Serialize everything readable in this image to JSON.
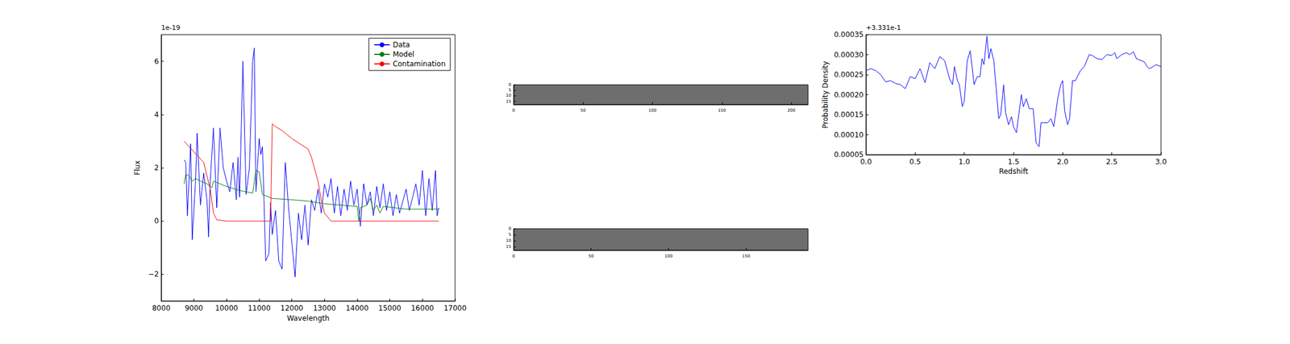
{
  "chart_data": [
    {
      "type": "line",
      "x_label": "Wavelength",
      "y_label": "Flux",
      "annotations": [
        "1e-19"
      ],
      "xlim": [
        8000,
        17000
      ],
      "xticks": [
        8000,
        9000,
        10000,
        11000,
        12000,
        13000,
        14000,
        15000,
        16000,
        17000
      ],
      "ylim": [
        -3,
        7
      ],
      "yticks": [
        {
          "value": -2,
          "label": "−2"
        },
        0,
        2,
        4,
        6
      ],
      "legend": "upper right",
      "series": [
        {
          "name": "Data",
          "color": "#0000ff",
          "x": [
            8700,
            8750,
            8800,
            8900,
            8950,
            9050,
            9100,
            9200,
            9300,
            9400,
            9450,
            9500,
            9600,
            9700,
            9800,
            9900,
            10000,
            10100,
            10200,
            10300,
            10350,
            10400,
            10500,
            10600,
            10700,
            10800,
            10850,
            10900,
            11000,
            11050,
            11100,
            11200,
            11300,
            11350,
            11400,
            11500,
            11600,
            11700,
            11800,
            11900,
            12000,
            12100,
            12200,
            12300,
            12400,
            12500,
            12600,
            12700,
            12800,
            12900,
            13000,
            13100,
            13200,
            13300,
            13400,
            13500,
            13600,
            13700,
            13800,
            13900,
            14000,
            14100,
            14200,
            14300,
            14400,
            14500,
            14600,
            14700,
            14800,
            14900,
            15000,
            15100,
            15200,
            15300,
            15500,
            15600,
            15800,
            15900,
            16000,
            16100,
            16200,
            16300,
            16400,
            16450,
            16500
          ],
          "values": [
            2.3,
            2.2,
            0.2,
            2.9,
            -0.7,
            1.5,
            3.3,
            0.6,
            1.8,
            0.8,
            -0.6,
            1.5,
            3.5,
            0.5,
            3.5,
            2.0,
            1.5,
            1.1,
            2.2,
            0.8,
            2.4,
            0.9,
            6.0,
            1.0,
            2.0,
            6.0,
            6.5,
            1.1,
            3.1,
            2.5,
            2.8,
            -1.5,
            -1.2,
            0.7,
            -0.5,
            0.4,
            -1.5,
            -1.8,
            2.2,
            0.5,
            -0.8,
            -2.1,
            0.3,
            -0.7,
            0.6,
            -0.9,
            0.8,
            0.4,
            1.2,
            0.3,
            1.4,
            0.9,
            1.6,
            0.3,
            1.3,
            0.2,
            1.2,
            0.4,
            1.5,
            0.6,
            1.2,
            -0.2,
            1.4,
            0.6,
            1.1,
            0.2,
            1.3,
            0.5,
            1.4,
            0.4,
            1.1,
            0.2,
            1.0,
            0.3,
            1.2,
            0.4,
            1.4,
            0.6,
            1.9,
            0.2,
            1.6,
            0.4,
            1.9,
            0.2,
            0.5
          ]
        },
        {
          "name": "Model",
          "color": "#008000",
          "x": [
            8700,
            8750,
            8850,
            8950,
            9050,
            9200,
            9400,
            9550,
            9600,
            9800,
            10000,
            10400,
            10800,
            10900,
            11000,
            11100,
            11400,
            12000,
            12500,
            13000,
            13500,
            14000,
            14050,
            14100,
            14300,
            14400,
            14500,
            14600,
            14700,
            14800,
            15500,
            16500
          ],
          "values": [
            1.4,
            1.75,
            1.7,
            1.5,
            1.6,
            1.5,
            1.4,
            1.25,
            1.5,
            1.4,
            1.3,
            1.15,
            1.05,
            1.9,
            1.85,
            1.0,
            0.85,
            0.8,
            0.75,
            0.65,
            0.6,
            0.55,
            0.0,
            0.5,
            0.6,
            0.85,
            0.4,
            0.6,
            0.3,
            0.55,
            0.45,
            0.45
          ]
        },
        {
          "name": "Contamination",
          "color": "#ff0000",
          "x": [
            8700,
            9000,
            9300,
            9500,
            9600,
            9700,
            10000,
            11350,
            11400,
            11500,
            11700,
            12000,
            12500,
            12600,
            12800,
            12900,
            13000,
            13200,
            16500
          ],
          "values": [
            3.0,
            2.6,
            2.2,
            1.2,
            0.3,
            0.05,
            0.0,
            0.0,
            3.65,
            3.55,
            3.4,
            3.1,
            2.7,
            2.4,
            1.5,
            0.8,
            0.3,
            0.0,
            0.0
          ]
        }
      ]
    },
    {
      "type": "image",
      "xlim": [
        0,
        212
      ],
      "xticks": [
        0,
        50,
        100,
        150,
        200
      ],
      "ylim": [
        0,
        18
      ],
      "yticks": [
        0,
        5,
        10,
        15
      ]
    },
    {
      "type": "image",
      "xlim": [
        0,
        190
      ],
      "xticks": [
        0,
        50,
        100,
        150
      ],
      "ylim": [
        0,
        18
      ],
      "yticks": [
        0,
        5,
        10,
        15
      ]
    },
    {
      "type": "line",
      "x_label": "Redshift",
      "y_label": "Probability Density",
      "annotations": [
        "+3.331e-1"
      ],
      "xlim": [
        0,
        3
      ],
      "xticks": [
        {
          "value": 0,
          "label": "0.0"
        },
        0.5,
        {
          "value": 1,
          "label": "1.0"
        },
        1.5,
        {
          "value": 2,
          "label": "2.0"
        },
        2.5,
        {
          "value": 3,
          "label": "3.0"
        }
      ],
      "ylim": [
        5e-05,
        0.00035
      ],
      "yticks": [
        {
          "value": 5e-05,
          "label": "0.00005"
        },
        {
          "value": 0.0001,
          "label": "0.00010"
        },
        {
          "value": 0.00015,
          "label": "0.00015"
        },
        {
          "value": 0.0002,
          "label": "0.00020"
        },
        {
          "value": 0.00025,
          "label": "0.00025"
        },
        {
          "value": 0.0003,
          "label": "0.00030"
        },
        {
          "value": 0.00035,
          "label": "0.00035"
        }
      ],
      "series": [
        {
          "color": "#0000ff",
          "x": [
            0,
            0.05,
            0.1,
            0.15,
            0.2,
            0.25,
            0.3,
            0.35,
            0.4,
            0.45,
            0.5,
            0.55,
            0.6,
            0.65,
            0.7,
            0.75,
            0.8,
            0.85,
            0.88,
            0.9,
            0.93,
            0.95,
            0.98,
            1.0,
            1.03,
            1.06,
            1.1,
            1.13,
            1.16,
            1.18,
            1.2,
            1.23,
            1.25,
            1.27,
            1.3,
            1.35,
            1.37,
            1.4,
            1.42,
            1.45,
            1.48,
            1.5,
            1.53,
            1.58,
            1.6,
            1.63,
            1.66,
            1.7,
            1.73,
            1.76,
            1.78,
            1.8,
            1.85,
            1.88,
            1.91,
            1.95,
            1.98,
            2.0,
            2.02,
            2.05,
            2.07,
            2.1,
            2.13,
            2.18,
            2.22,
            2.27,
            2.3,
            2.35,
            2.4,
            2.45,
            2.5,
            2.53,
            2.55,
            2.6,
            2.65,
            2.68,
            2.72,
            2.75,
            2.8,
            2.83,
            2.86,
            2.88,
            2.92,
            2.95,
            3.0
          ],
          "values": [
            0.00026,
            0.000265,
            0.00026,
            0.00025,
            0.000232,
            0.000235,
            0.000228,
            0.000225,
            0.000215,
            0.000245,
            0.00024,
            0.000265,
            0.00023,
            0.00028,
            0.000265,
            0.000295,
            0.000285,
            0.00024,
            0.000225,
            0.00027,
            0.000235,
            0.000225,
            0.00017,
            0.000185,
            0.000285,
            0.00031,
            0.000225,
            0.000245,
            0.000245,
            0.00029,
            0.000275,
            0.000347,
            0.00029,
            0.000315,
            0.000285,
            0.00014,
            0.00015,
            0.000225,
            0.000155,
            0.000125,
            0.000145,
            0.00012,
            0.000105,
            0.0002,
            0.00017,
            0.00019,
            0.000165,
            0.000165,
            8e-05,
            7e-05,
            0.00013,
            0.00013,
            0.00013,
            0.00014,
            0.00012,
            0.00019,
            0.000225,
            0.000235,
            0.00016,
            0.000125,
            0.00014,
            0.000235,
            0.000235,
            0.00026,
            0.00027,
            0.0003,
            0.000298,
            0.00029,
            0.000288,
            0.0003,
            0.000298,
            0.000305,
            0.00029,
            0.0003,
            0.000305,
            0.0003,
            0.000307,
            0.00029,
            0.000285,
            0.000282,
            0.00027,
            0.000265,
            0.00027,
            0.000275,
            0.00027
          ]
        }
      ]
    }
  ]
}
